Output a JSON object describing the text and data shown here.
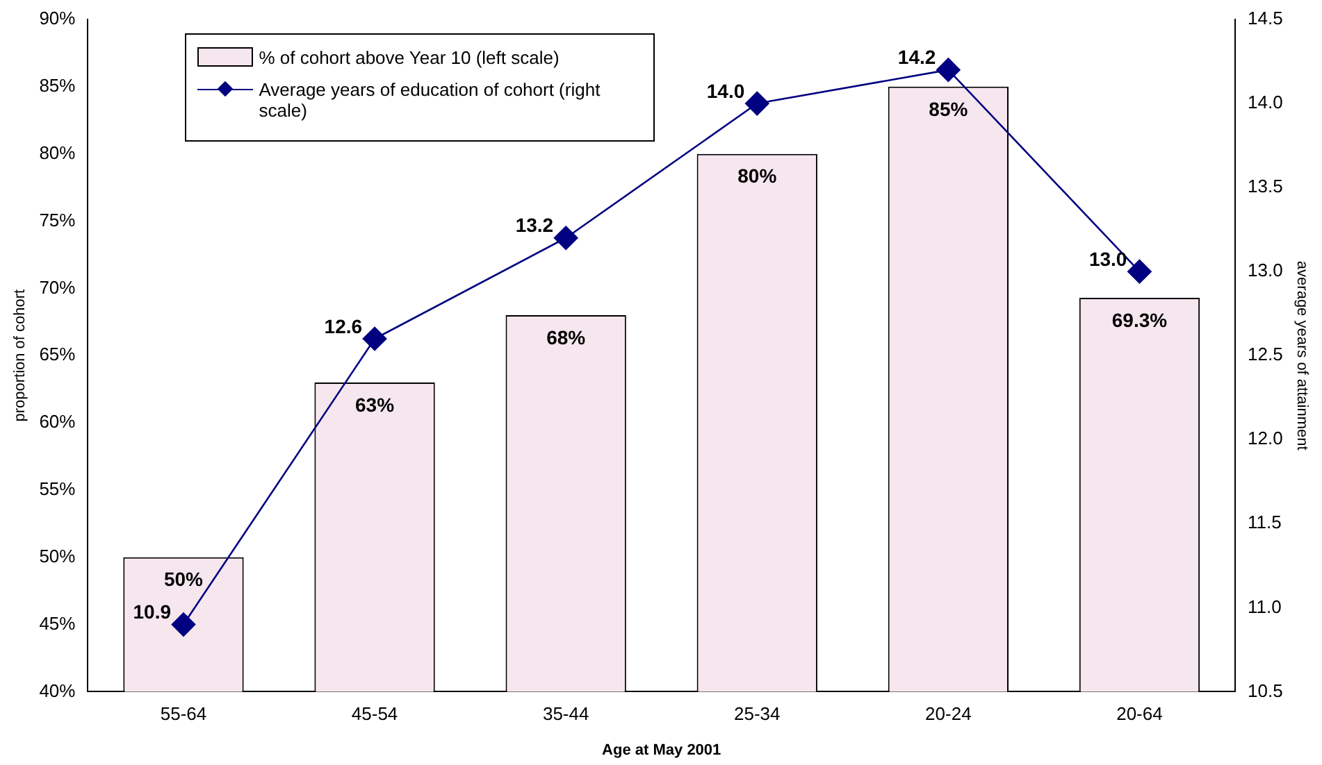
{
  "chart_data": {
    "type": "bar",
    "categories": [
      "55-64",
      "45-54",
      "35-44",
      "25-34",
      "20-24",
      "20-64"
    ],
    "series": [
      {
        "name": "% of cohort above Year 10 (left scale)",
        "color": "#f6e6ee",
        "values": [
          50,
          63,
          68,
          80,
          85,
          69.3
        ],
        "value_labels": [
          "50%",
          "63%",
          "68%",
          "80%",
          "85%",
          "69.3%"
        ]
      },
      {
        "name": "Average years of education of cohort (right scale)",
        "type": "line",
        "axis": "y2",
        "color": "#000080",
        "values": [
          10.9,
          12.6,
          13.2,
          14.0,
          14.2,
          13.0
        ],
        "value_labels": [
          "10.9",
          "12.6",
          "13.2",
          "14.0",
          "14.2",
          "13.0"
        ]
      }
    ],
    "xlabel": "Age at May 2001",
    "ylabel": "proportion of cohort",
    "y2label": "average years of attainment",
    "ylim": [
      40,
      90
    ],
    "yticks": [
      {
        "value": 40,
        "label": "40%"
      },
      {
        "value": 45,
        "label": "45%"
      },
      {
        "value": 50,
        "label": "50%"
      },
      {
        "value": 55,
        "label": "55%"
      },
      {
        "value": 60,
        "label": "60%"
      },
      {
        "value": 65,
        "label": "65%"
      },
      {
        "value": 70,
        "label": "70%"
      },
      {
        "value": 75,
        "label": "75%"
      },
      {
        "value": 80,
        "label": "80%"
      },
      {
        "value": 85,
        "label": "85%"
      },
      {
        "value": 90,
        "label": "90%"
      }
    ],
    "y2lim": [
      10.5,
      14.5
    ],
    "y2ticks": [
      {
        "value": 10.5,
        "label": "10.5"
      },
      {
        "value": 11,
        "label": "11.0"
      },
      {
        "value": 11.5,
        "label": "11.5"
      },
      {
        "value": 12,
        "label": "12.0"
      },
      {
        "value": 12.5,
        "label": "12.5"
      },
      {
        "value": 13,
        "label": "13.0"
      },
      {
        "value": 13.5,
        "label": "13.5"
      },
      {
        "value": 14,
        "label": "14.0"
      },
      {
        "value": 14.5,
        "label": "14.5"
      }
    ],
    "grid": false,
    "legend": "top left",
    "marker": "diamond",
    "line_style": "solid"
  }
}
